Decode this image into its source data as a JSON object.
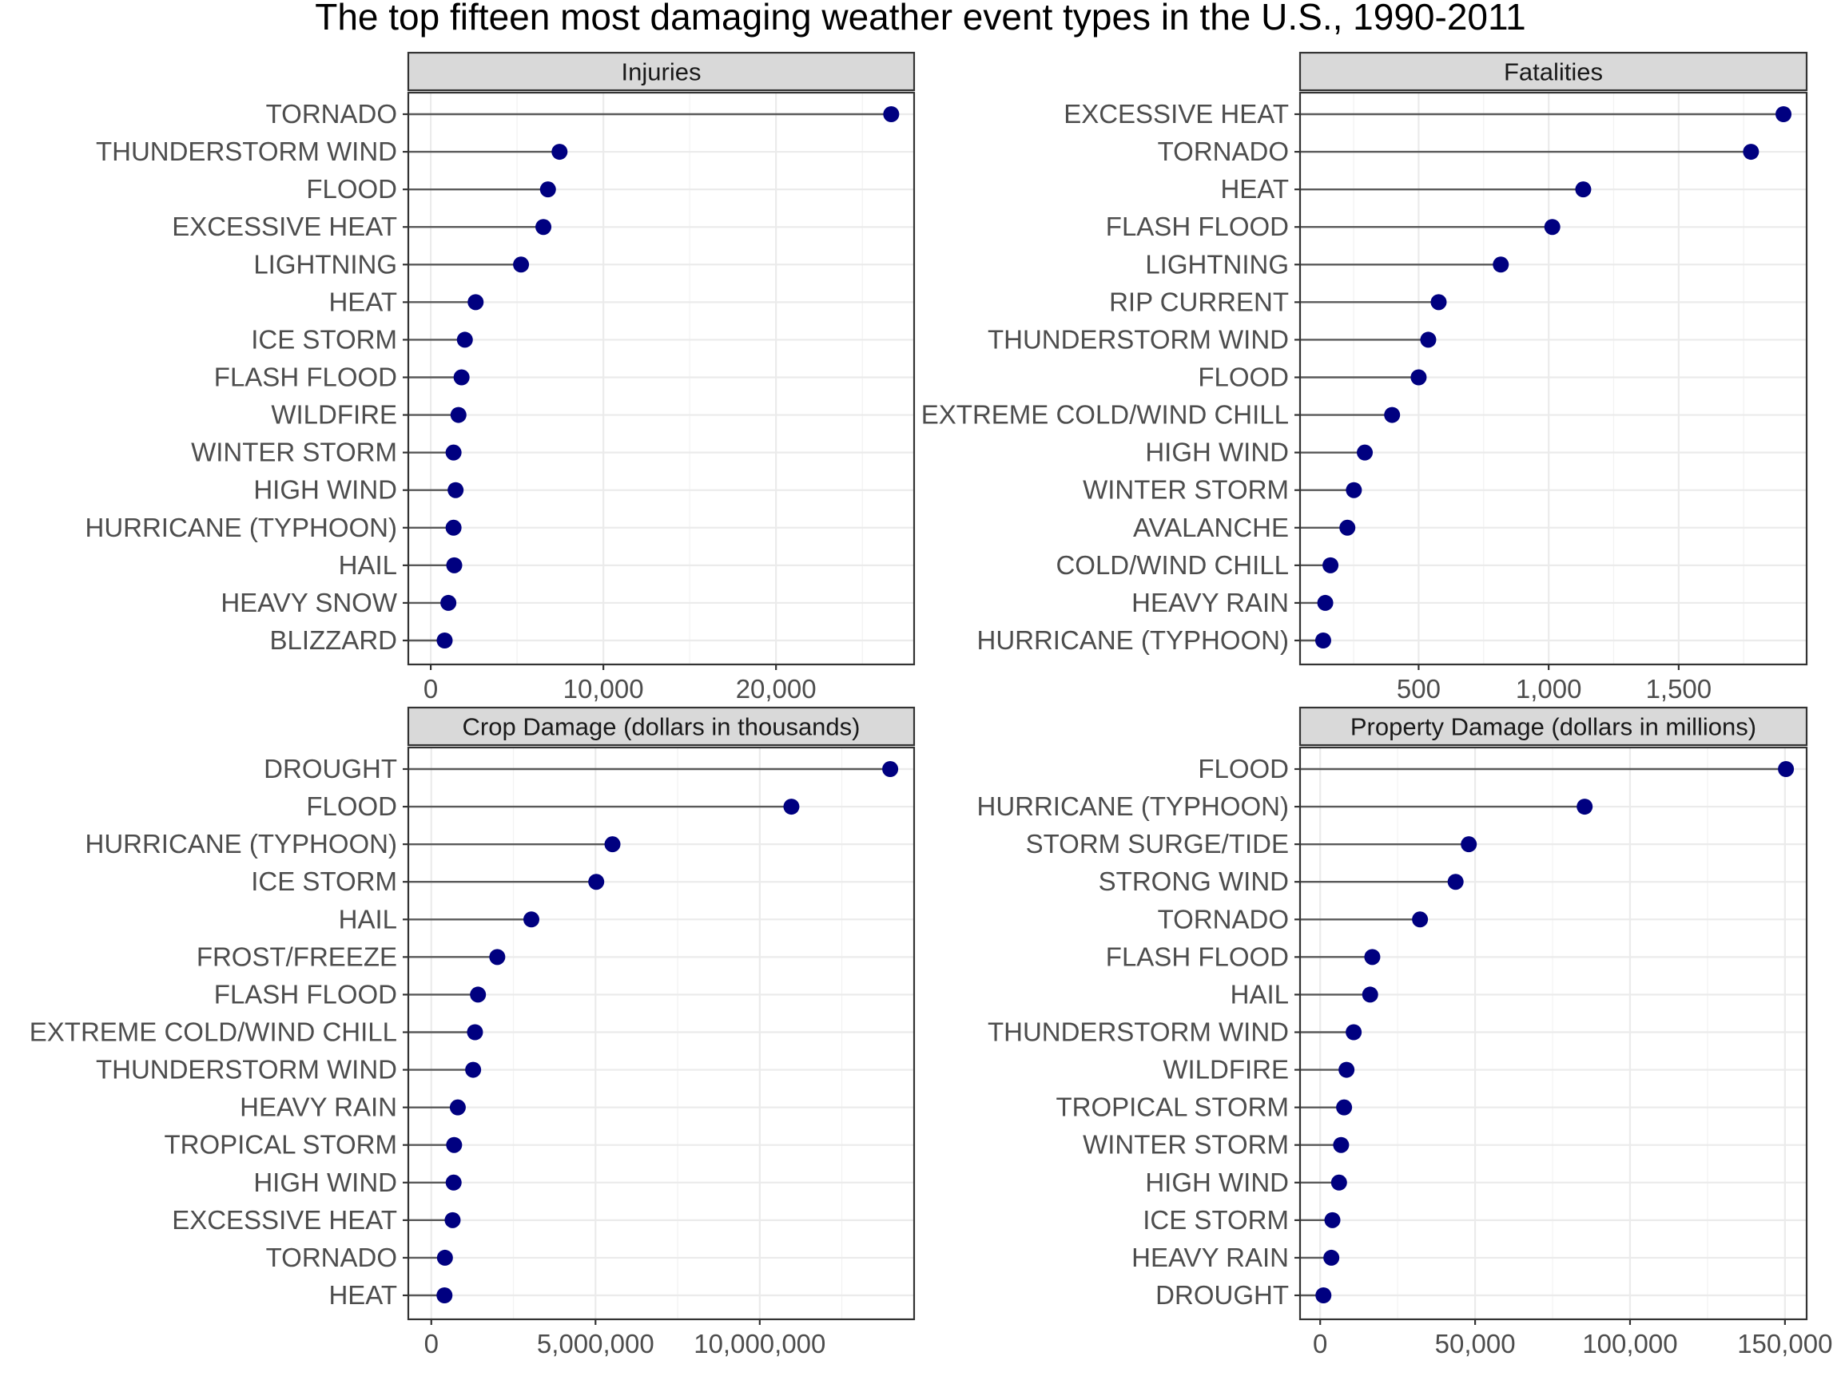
{
  "title": "The top fifteen most damaging weather event types in the U.S., 1990-2011",
  "colors": {
    "point": "#000080",
    "segment": "#595959",
    "strip": "#d9d9d9",
    "grid": "#ebebeb"
  },
  "chart_data": [
    {
      "type": "scatter",
      "panel": "Injuries",
      "categories": [
        "TORNADO",
        "THUNDERSTORM WIND",
        "FLOOD",
        "EXCESSIVE HEAT",
        "LIGHTNING",
        "HEAT",
        "ICE STORM",
        "FLASH FLOOD",
        "WILDFIRE",
        "WINTER STORM",
        "HIGH WIND",
        "HURRICANE (TYPHOON)",
        "HAIL",
        "HEAVY SNOW",
        "BLIZZARD"
      ],
      "values": [
        26674,
        7461,
        6789,
        6525,
        5230,
        2600,
        1975,
        1785,
        1606,
        1321,
        1439,
        1321,
        1361,
        1021,
        805
      ],
      "xlim": [
        -1300,
        28000
      ],
      "xticks": [
        0,
        10000,
        20000
      ],
      "xtick_labels": [
        "0",
        "10,000",
        "20,000"
      ]
    },
    {
      "type": "scatter",
      "panel": "Fatalities",
      "categories": [
        "EXCESSIVE HEAT",
        "TORNADO",
        "HEAT",
        "FLASH FLOOD",
        "LIGHTNING",
        "RIP CURRENT",
        "THUNDERSTORM WIND",
        "FLOOD",
        "EXTREME COLD/WIND CHILL",
        "HIGH WIND",
        "WINTER STORM",
        "AVALANCHE",
        "COLD/WIND CHILL",
        "HEAVY RAIN",
        "HURRICANE (TYPHOON)"
      ],
      "values": [
        1903,
        1778,
        1133,
        1014,
        816,
        577,
        537,
        500,
        398,
        293,
        251,
        226,
        161,
        141,
        133
      ],
      "xlim": [
        44,
        1992
      ],
      "xticks": [
        500,
        1000,
        1500
      ],
      "xtick_labels": [
        "500",
        "1,000",
        "1,500"
      ]
    },
    {
      "type": "scatter",
      "panel": "Crop Damage (dollars in thousands)",
      "categories": [
        "DROUGHT",
        "FLOOD",
        "HURRICANE (TYPHOON)",
        "ICE STORM",
        "HAIL",
        "FROST/FREEZE",
        "FLASH FLOOD",
        "EXTREME COLD/WIND CHILL",
        "THUNDERSTORM WIND",
        "HEAVY RAIN",
        "TROPICAL STORM",
        "HIGH WIND",
        "EXCESSIVE HEAT",
        "TORNADO",
        "HEAT"
      ],
      "values": [
        13972566,
        10964000,
        5516118,
        5022113,
        3046468,
        2009000,
        1421317,
        1330000,
        1274000,
        806162,
        694896,
        680000,
        649000,
        414953,
        401461
      ],
      "xlim": [
        -700000,
        14700000
      ],
      "xticks": [
        0,
        5000000,
        10000000
      ],
      "xtick_labels": [
        "0",
        "5,000,000",
        "10,000,000"
      ]
    },
    {
      "type": "scatter",
      "panel": "Property Damage (dollars in millions)",
      "categories": [
        "FLOOD",
        "HURRICANE (TYPHOON)",
        "STORM SURGE/TIDE",
        "STRONG WIND",
        "TORNADO",
        "FLASH FLOOD",
        "HAIL",
        "THUNDERSTORM WIND",
        "WILDFIRE",
        "TROPICAL STORM",
        "WINTER STORM",
        "HIGH WIND",
        "ICE STORM",
        "HEAVY RAIN",
        "DROUGHT"
      ],
      "values": [
        150320,
        85356,
        47965,
        43702,
        32217,
        16822,
        16122,
        10808,
        8497,
        7716,
        6749,
        6086,
        3946,
        3602,
        1046
      ],
      "xlim": [
        -6500,
        157000
      ],
      "xticks": [
        0,
        50000,
        100000,
        150000
      ],
      "xtick_labels": [
        "0",
        "50,000",
        "100,000",
        "150,000"
      ]
    }
  ]
}
